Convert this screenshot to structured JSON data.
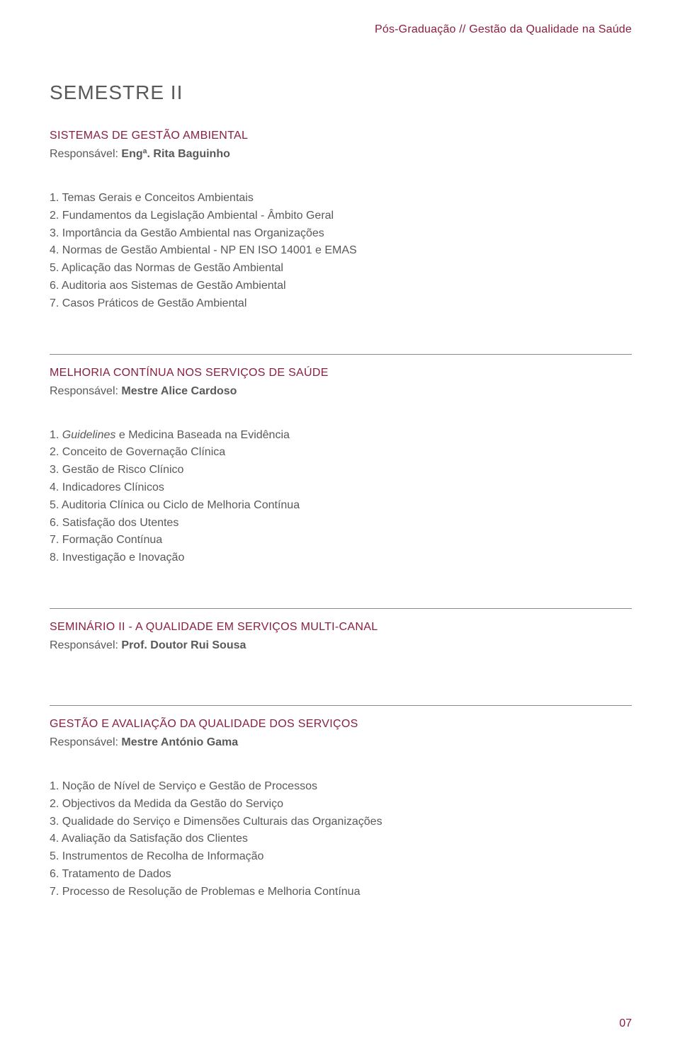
{
  "colors": {
    "accent": "#8a1f3e",
    "body_text": "#595959",
    "rule": "#8a8a8a",
    "background": "#ffffff"
  },
  "typography": {
    "body_fontsize_pt": 12,
    "title_fontsize_pt": 21,
    "title_weight": 300
  },
  "header": {
    "breadcrumb": "Pós-Graduação // Gestão da Qualidade na Saúde"
  },
  "semester_title": "SEMESTRE II",
  "sections": [
    {
      "title": "SISTEMAS DE GESTÃO AMBIENTAL",
      "responsavel_label": "Responsável: ",
      "responsavel_value": "Engª. Rita Baguinho",
      "items": [
        "1. Temas Gerais e Conceitos Ambientais",
        "2. Fundamentos da Legislação Ambiental - Âmbito Geral",
        "3. Importância da Gestão Ambiental nas Organizações",
        "4. Normas de Gestão Ambiental - NP EN ISO 14001 e EMAS",
        "5. Aplicação das Normas de Gestão Ambiental",
        "6. Auditoria aos Sistemas de Gestão Ambiental",
        "7. Casos Práticos de Gestão Ambiental"
      ]
    },
    {
      "title": "MELHORIA CONTÍNUA NOS SERVIÇOS DE SAÚDE",
      "responsavel_label": "Responsável: ",
      "responsavel_value": "Mestre Alice Cardoso",
      "items_html": [
        "1. <em>Guidelines</em> e Medicina Baseada na Evidência",
        "2. Conceito de Governação Clínica",
        "3. Gestão de Risco Clínico",
        "4. Indicadores Clínicos",
        "5. Auditoria Clínica ou Ciclo de Melhoria Contínua",
        "6. Satisfação dos Utentes",
        "7. Formação Contínua",
        "8. Investigação e Inovação"
      ]
    },
    {
      "title": "SEMINÁRIO II - A QUALIDADE EM SERVIÇOS MULTI-CANAL",
      "responsavel_label": "Responsável: ",
      "responsavel_value": "Prof. Doutor Rui Sousa",
      "items": []
    },
    {
      "title": "GESTÃO E AVALIAÇÃO DA QUALIDADE DOS SERVIÇOS",
      "responsavel_label": "Responsável: ",
      "responsavel_value": "Mestre António Gama",
      "items": [
        "1. Noção de Nível de Serviço e Gestão de Processos",
        "2. Objectivos da Medida da Gestão do Serviço",
        "3. Qualidade do Serviço e Dimensões Culturais das Organizações",
        "4. Avaliação da Satisfação dos Clientes",
        "5. Instrumentos de Recolha de Informação",
        "6. Tratamento de Dados",
        "7. Processo de Resolução de Problemas e Melhoria Contínua"
      ]
    }
  ],
  "page_number": "07"
}
